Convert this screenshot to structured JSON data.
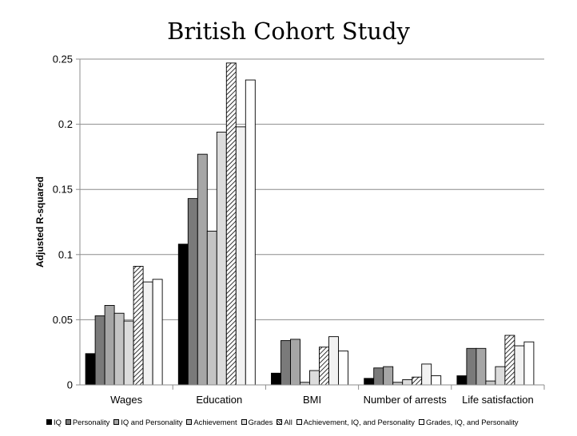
{
  "chart_data": {
    "type": "bar",
    "title": "British Cohort Study",
    "xlabel": "",
    "ylabel": "Adjusted R-squared",
    "ylim": [
      0,
      0.25
    ],
    "yticks": [
      "0",
      "0.05",
      "0.1",
      "0.15",
      "0.2",
      "0.25"
    ],
    "grid": true,
    "legend_position": "bottom",
    "categories": [
      "Wages",
      "Education",
      "BMI",
      "Number of arrests",
      "Life satisfaction"
    ],
    "series": [
      {
        "name": "IQ",
        "color": "#000000",
        "pattern": "solid",
        "values": [
          0.024,
          0.108,
          0.009,
          0.005,
          0.007
        ]
      },
      {
        "name": "Personality",
        "color": "#7a7a7a",
        "pattern": "solid",
        "values": [
          0.053,
          0.143,
          0.034,
          0.013,
          0.028
        ]
      },
      {
        "name": "IQ and Personality",
        "color": "#a6a6a6",
        "pattern": "solid",
        "values": [
          0.061,
          0.177,
          0.035,
          0.014,
          0.028
        ]
      },
      {
        "name": "Achievement",
        "color": "#c4c4c4",
        "pattern": "solid",
        "values": [
          0.055,
          0.118,
          0.002,
          0.002,
          0.003
        ]
      },
      {
        "name": "Grades",
        "color": "#dcdcdc",
        "pattern": "solid",
        "values": [
          0.049,
          0.194,
          0.011,
          0.004,
          0.014
        ]
      },
      {
        "name": "All",
        "color": "#ffffff",
        "pattern": "hatch",
        "values": [
          0.091,
          0.247,
          0.029,
          0.006,
          0.038
        ]
      },
      {
        "name": "Achievement, IQ, and Personality",
        "color": "#f2f2f2",
        "pattern": "solid",
        "values": [
          0.079,
          0.198,
          0.037,
          0.016,
          0.03
        ]
      },
      {
        "name": "Grades, IQ, and Personality",
        "color": "#ffffff",
        "pattern": "solid",
        "values": [
          0.081,
          0.234,
          0.026,
          0.007,
          0.033
        ]
      }
    ]
  }
}
